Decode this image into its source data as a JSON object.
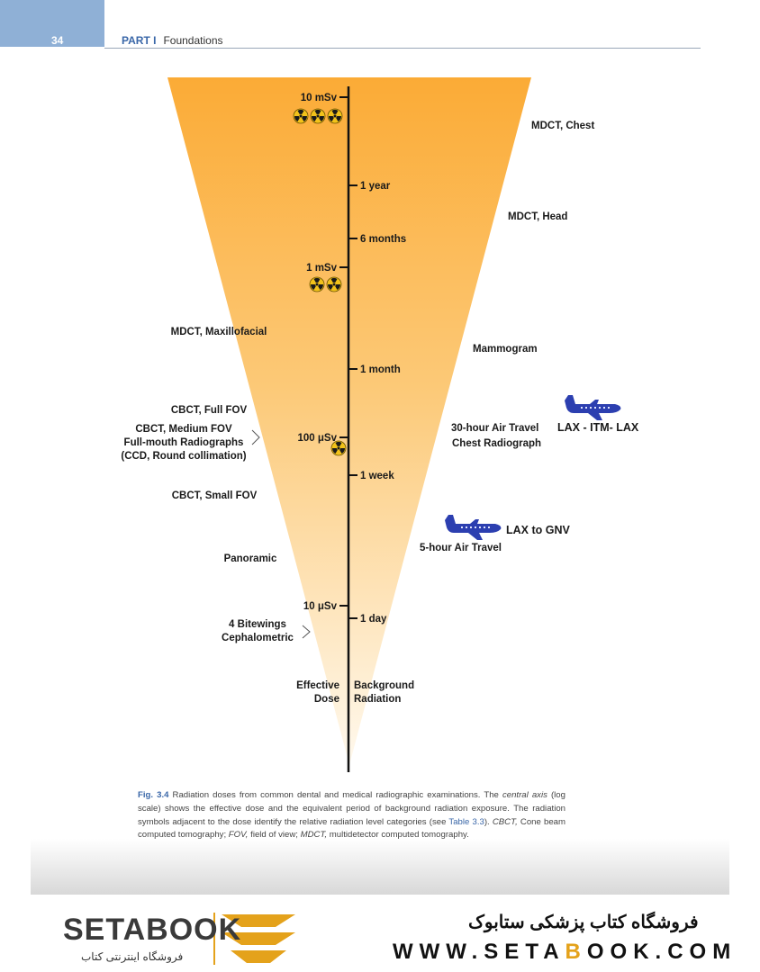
{
  "header": {
    "page_number": "34",
    "part": "PART I",
    "section": "Foundations"
  },
  "axis": {
    "doses": [
      {
        "label": "10 mSv",
        "symbols": 3
      },
      {
        "label": "1 mSv",
        "symbols": 2
      },
      {
        "label": "100 μSv",
        "symbols": 1
      },
      {
        "label": "10 μSv",
        "symbols": 0
      }
    ],
    "periods": [
      "1 year",
      "6 months",
      "1 month",
      "1 week",
      "1 day"
    ],
    "left_title": [
      "Effective",
      "Dose"
    ],
    "right_title": [
      "Background",
      "Radiation"
    ]
  },
  "left_labels": [
    {
      "lines": [
        "MDCT, Maxillofacial"
      ]
    },
    {
      "lines": [
        "CBCT, Full FOV"
      ]
    },
    {
      "lines": [
        "CBCT, Medium FOV",
        "Full-mouth Radiographs",
        "(CCD, Round collimation)"
      ]
    },
    {
      "lines": [
        "CBCT, Small FOV"
      ]
    },
    {
      "lines": [
        "Panoramic"
      ]
    },
    {
      "lines": [
        "4 Bitewings",
        "Cephalometric"
      ]
    }
  ],
  "right_labels": [
    {
      "lines": [
        "MDCT, Chest"
      ]
    },
    {
      "lines": [
        "MDCT, Head"
      ]
    },
    {
      "lines": [
        "Mammogram"
      ]
    },
    {
      "lines": [
        "30-hour Air Travel"
      ]
    },
    {
      "lines": [
        "Chest Radiograph"
      ]
    },
    {
      "lines": [
        "5-hour Air Travel"
      ]
    }
  ],
  "flights": [
    {
      "route": "LAX - ITM- LAX"
    },
    {
      "route": "LAX to GNV"
    }
  ],
  "caption": {
    "label": "Fig. 3.4",
    "text1": "Radiation doses from common dental and medical radiographic examinations. The ",
    "em1": "central axis",
    "text2": " (log scale) shows the effective dose and the equivalent period of background radiation exposure. The radiation symbols adjacent to the dose identify the relative radiation level categories (see ",
    "ref": "Table 3.3",
    "text3": "). ",
    "em2": "CBCT,",
    "text4": " Cone beam computed tomography; ",
    "em3": "FOV,",
    "text5": " field of view; ",
    "em4": "MDCT,",
    "text6": " multidetector computed tomography."
  },
  "footer": {
    "logo_text": "SETABOOK",
    "logo_sub": "فروشگاه اینترنتی کتاب",
    "store_name": "فروشگاه کتاب پزشکی ستابوک",
    "url_pre": "WWW.SETA",
    "url_hl": "B",
    "url_post": "OOK.COM"
  },
  "colors": {
    "funnel_top": "#fbab36",
    "funnel_bottom": "#fff9ee",
    "accent_blue": "#3a67a8",
    "plane": "#2c3fb0"
  }
}
